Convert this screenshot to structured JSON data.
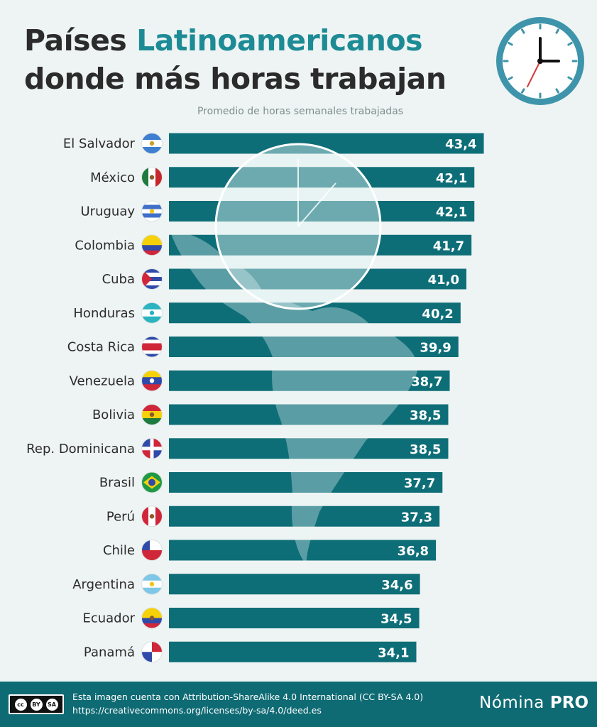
{
  "header": {
    "title_line1_plain": "Países ",
    "title_line1_accent": "Latinoamericanos",
    "title_line2": "donde más horas trabajan",
    "subtitle": "Promedio de horas semanales trabajadas"
  },
  "colors": {
    "bar": "#0e6e78",
    "accent": "#1d8b95",
    "title": "#2b2b2b",
    "footer": "#0e6a73",
    "background": "#eef4f3"
  },
  "chart_data": {
    "type": "bar",
    "orientation": "horizontal",
    "title": "Países Latinoamericanos donde más horas trabajan",
    "subtitle": "Promedio de horas semanales trabajadas",
    "xlabel": "",
    "ylabel": "",
    "grid": false,
    "categories": [
      "El Salvador",
      "México",
      "Uruguay",
      "Colombia",
      "Cuba",
      "Honduras",
      "Costa Rica",
      "Venezuela",
      "Bolivia",
      "Rep. Dominicana",
      "Brasil",
      "Perú",
      "Chile",
      "Argentina",
      "Ecuador",
      "Panamá"
    ],
    "values": [
      43.4,
      42.1,
      42.1,
      41.7,
      41.0,
      40.2,
      39.9,
      38.7,
      38.5,
      38.5,
      37.7,
      37.3,
      36.8,
      34.6,
      34.5,
      34.1
    ],
    "value_labels": [
      "43,4",
      "42,1",
      "42,1",
      "41,7",
      "41,0",
      "40,2",
      "39,9",
      "38,7",
      "38,5",
      "38,5",
      "37,7",
      "37,3",
      "36,8",
      "34,6",
      "34,5",
      "34,1"
    ],
    "flags": [
      "flag-el-salvador-icon",
      "flag-mexico-icon",
      "flag-uruguay-icon",
      "flag-colombia-icon",
      "flag-cuba-icon",
      "flag-honduras-icon",
      "flag-costa-rica-icon",
      "flag-venezuela-icon",
      "flag-bolivia-icon",
      "flag-dominican-republic-icon",
      "flag-brazil-icon",
      "flag-peru-icon",
      "flag-chile-icon",
      "flag-argentina-icon",
      "flag-ecuador-icon",
      "flag-panama-icon"
    ]
  },
  "footer": {
    "cc_badge_by": "BY",
    "cc_badge_sa": "SA",
    "license_line1": "Esta imagen cuenta con Attribution-ShareAlike 4.0 International (CC BY-SA 4.0)",
    "license_line2": "https://creativecommons.org/licenses/by-sa/4.0/deed.es",
    "brand_part1": "Nómina",
    "brand_part2": "PRO"
  }
}
